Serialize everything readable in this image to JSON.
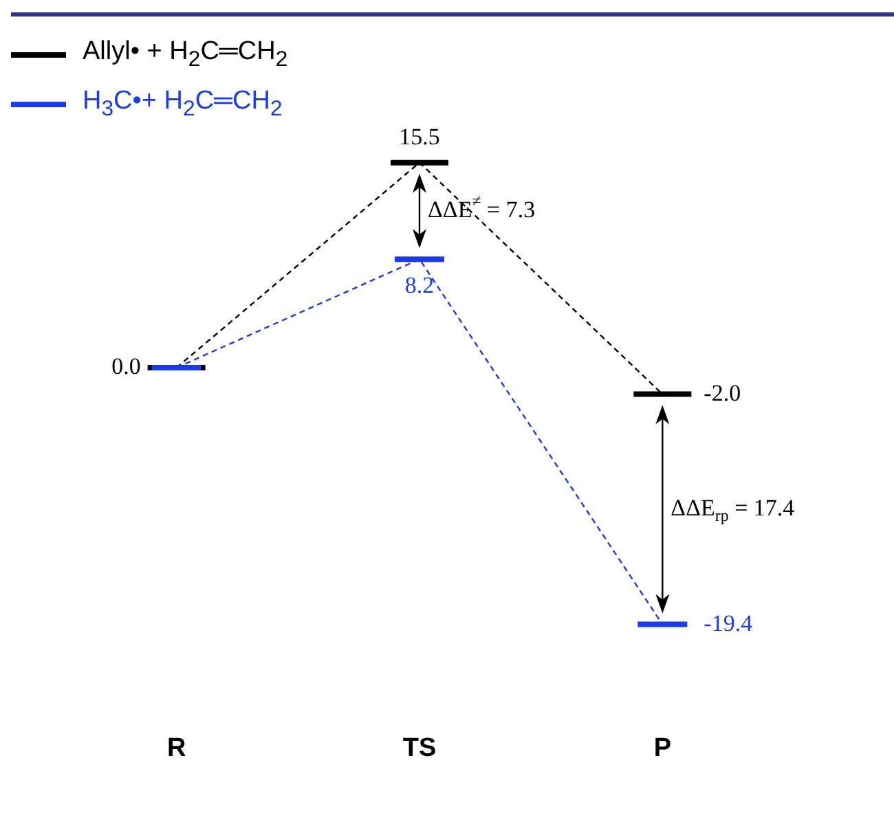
{
  "chart_data": {
    "type": "line",
    "categories": [
      "R",
      "TS",
      "P"
    ],
    "series": [
      {
        "name": "Allyl• + H$_{2}$C═CH$_{2}$",
        "color": "#000000",
        "values": [
          0.0,
          15.5,
          -2.0
        ],
        "value_labels": [
          "0.0",
          "15.5",
          "-2.0"
        ]
      },
      {
        "name": "H$_{3}$C•+ H$_{2}$C═CH$_{2}$",
        "color": "#1a3cf0",
        "values": [
          0.0,
          8.2,
          -19.4
        ],
        "value_labels": [
          null,
          "8.2",
          "-19.4"
        ]
      }
    ],
    "annotations": [
      "ΔΔE$^{≠}$ = 7.3",
      "ΔΔE$_{rp}$ = 17.4"
    ],
    "line_style": "dashed",
    "grid": false,
    "legend": "top left",
    "tick_labels": "x"
  }
}
